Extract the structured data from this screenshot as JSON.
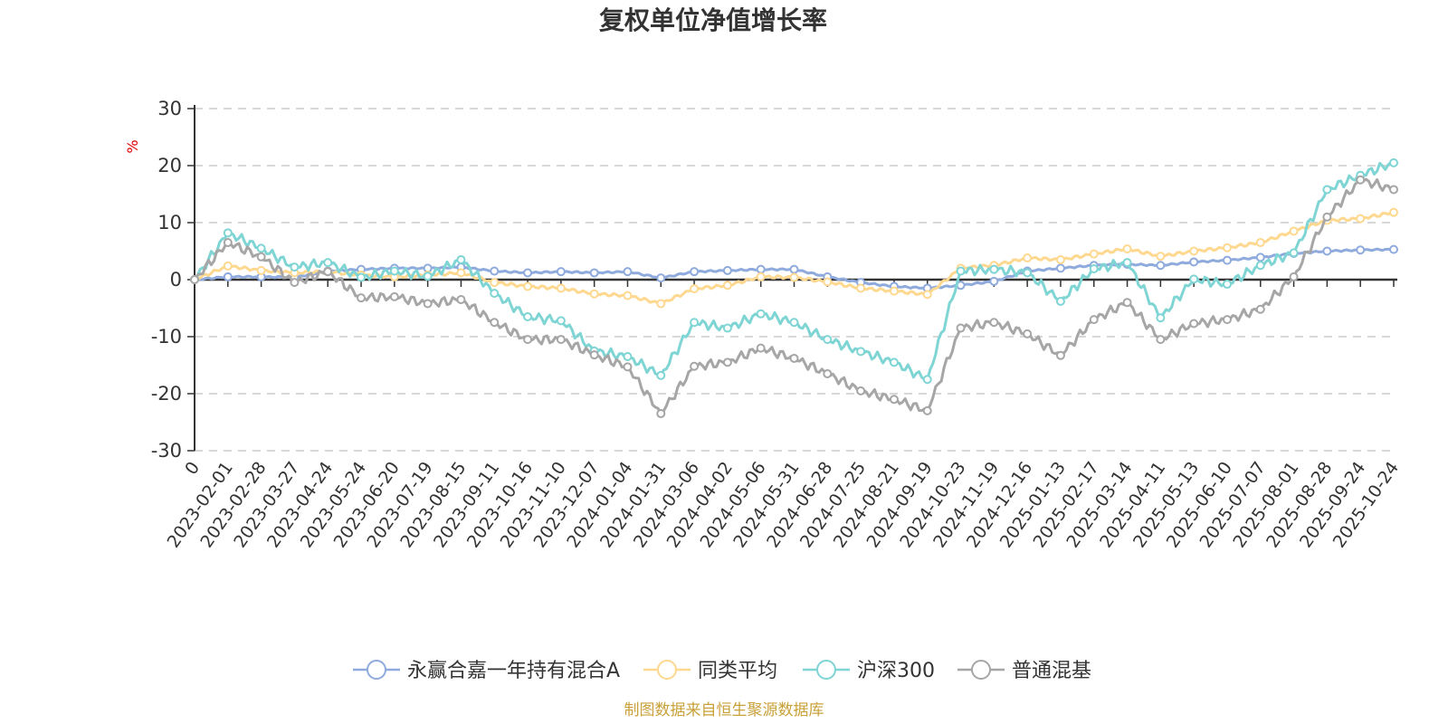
{
  "chart_data": {
    "type": "line",
    "title": "复权单位净值增长率",
    "ylabel": "%",
    "ylim": [
      -30,
      30
    ],
    "yticks": [
      "30",
      "20",
      "10",
      "0",
      "-10",
      "-20",
      "-30"
    ],
    "y_tick_values": [
      30,
      20,
      10,
      0,
      -10,
      -20,
      -30
    ],
    "x_tick_labels": [
      "0",
      "2023-02-01",
      "2023-02-28",
      "2023-03-27",
      "2023-04-24",
      "2023-05-24",
      "2023-06-20",
      "2023-07-19",
      "2023-08-15",
      "2023-09-11",
      "2023-10-16",
      "2023-11-10",
      "2023-12-07",
      "2024-01-04",
      "2024-01-31",
      "2024-03-06",
      "2024-04-02",
      "2024-05-06",
      "2024-05-31",
      "2024-06-28",
      "2024-07-25",
      "2024-08-21",
      "2024-09-19",
      "2024-10-23",
      "2024-11-19",
      "2024-12-16",
      "2025-01-13",
      "2025-02-17",
      "2025-03-14",
      "2025-04-11",
      "2025-05-13",
      "2025-06-10",
      "2025-07-07",
      "2025-08-01",
      "2025-08-28",
      "2025-09-24",
      "2025-10-24"
    ],
    "grid": true,
    "legend_position": "bottom",
    "series": [
      {
        "name": "永赢合嘉一年持有混合A",
        "color": "#8faadc",
        "values": [
          0,
          0.5,
          0.5,
          0.4,
          1.5,
          1.8,
          2,
          2,
          2.2,
          1.5,
          1.2,
          1.4,
          1.2,
          1.4,
          0.3,
          1.4,
          1.6,
          1.8,
          1.8,
          0.5,
          -0.5,
          -1.2,
          -1.5,
          -1,
          -0.3,
          1.5,
          2,
          2.5,
          2.7,
          2.5,
          3.1,
          3.4,
          3.9,
          4.6,
          5,
          5.2,
          5.3
        ]
      },
      {
        "name": "同类平均",
        "color": "#fed88f",
        "values": [
          0,
          2.4,
          1.6,
          1.2,
          1.4,
          0.8,
          0.5,
          0.8,
          1.2,
          -0.5,
          -1.2,
          -1.5,
          -2.5,
          -2.8,
          -4.2,
          -1.6,
          -1,
          0.5,
          0.4,
          -0.4,
          -1.5,
          -2,
          -2.6,
          2,
          2.5,
          3.8,
          3.5,
          4.5,
          5.4,
          4.1,
          5,
          5.6,
          6.5,
          8.5,
          10.4,
          10.7,
          11.8
        ]
      },
      {
        "name": "沪深300",
        "color": "#7fd4d4",
        "values": [
          0,
          8.2,
          5.5,
          2.2,
          3,
          0.4,
          1.5,
          0.6,
          3.5,
          -2.4,
          -6.5,
          -7.2,
          -12.5,
          -13.5,
          -16.8,
          -7.5,
          -8.5,
          -6,
          -7.5,
          -10.5,
          -12.6,
          -14.5,
          -17.5,
          1.5,
          1.8,
          1.2,
          -3.8,
          1.9,
          3,
          -6.7,
          0.1,
          -0.8,
          2.5,
          4.7,
          15.8,
          18.3,
          20.5
        ]
      },
      {
        "name": "普通混基",
        "color": "#a6a6a6",
        "values": [
          0,
          6.5,
          4,
          -0.5,
          1.4,
          -3.2,
          -3,
          -4.2,
          -3.5,
          -7.5,
          -10.5,
          -10.5,
          -13.2,
          -15.3,
          -23.5,
          -15.2,
          -14.5,
          -12,
          -13.8,
          -16.5,
          -19.5,
          -21,
          -23,
          -8.5,
          -7.5,
          -9.5,
          -13.3,
          -7,
          -4,
          -10.5,
          -7.7,
          -7,
          -5.2,
          0.5,
          11,
          17.5,
          15.8
        ]
      }
    ],
    "source": "制图数据来自恒生聚源数据库"
  }
}
